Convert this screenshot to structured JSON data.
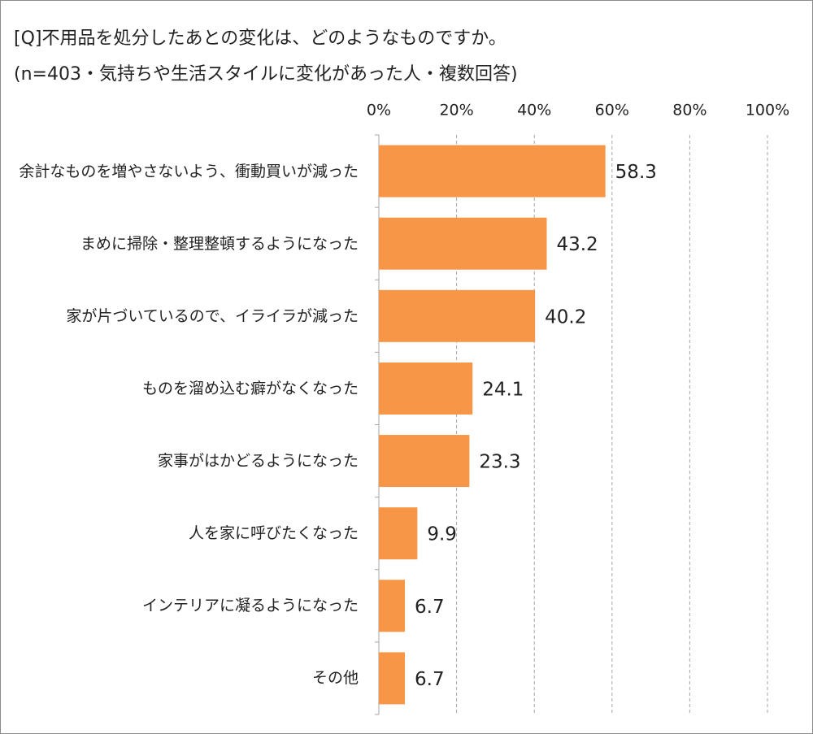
{
  "chart_data": {
    "type": "bar",
    "orientation": "horizontal",
    "title": "[Q]不用品を処分したあとの変化は、どのようなものですか。",
    "subtitle": "(n=403・気持ちや生活スタイルに変化があった人・複数回答)",
    "categories": [
      "余計なものを増やさないよう、衝動買いが減った",
      "まめに掃除・整理整頓するようになった",
      "家が片づいているので、イライラが減った",
      "ものを溜め込む癖がなくなった",
      "家事がはかどるようになった",
      "人を家に呼びたくなった",
      "インテリアに凝るようになった",
      "その他"
    ],
    "values": [
      58.3,
      43.2,
      40.2,
      24.1,
      23.3,
      9.9,
      6.7,
      6.7
    ],
    "color": "#f79646",
    "xlim": [
      0,
      100
    ],
    "xticks": [
      {
        "value": 0,
        "label": "0%"
      },
      {
        "value": 20,
        "label": "20%"
      },
      {
        "value": 40,
        "label": "40%"
      },
      {
        "value": 60,
        "label": "60%"
      },
      {
        "value": 80,
        "label": "80%"
      },
      {
        "value": 100,
        "label": "100%"
      }
    ],
    "grid": true
  }
}
